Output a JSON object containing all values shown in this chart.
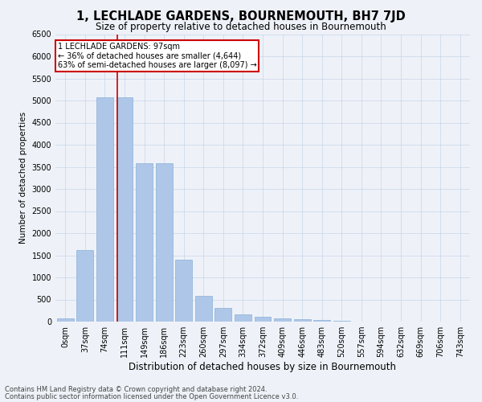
{
  "title": "1, LECHLADE GARDENS, BOURNEMOUTH, BH7 7JD",
  "subtitle": "Size of property relative to detached houses in Bournemouth",
  "xlabel": "Distribution of detached houses by size in Bournemouth",
  "ylabel": "Number of detached properties",
  "footer_line1": "Contains HM Land Registry data © Crown copyright and database right 2024.",
  "footer_line2": "Contains public sector information licensed under the Open Government Licence v3.0.",
  "bar_labels": [
    "0sqm",
    "37sqm",
    "74sqm",
    "111sqm",
    "149sqm",
    "186sqm",
    "223sqm",
    "260sqm",
    "297sqm",
    "334sqm",
    "372sqm",
    "409sqm",
    "446sqm",
    "483sqm",
    "520sqm",
    "557sqm",
    "594sqm",
    "632sqm",
    "669sqm",
    "706sqm",
    "743sqm"
  ],
  "bar_values": [
    75,
    1620,
    5080,
    5080,
    3580,
    3580,
    1400,
    590,
    310,
    155,
    110,
    75,
    60,
    30,
    15,
    8,
    5,
    3,
    2,
    2,
    2
  ],
  "bar_color": "#aec6e8",
  "bar_edge_color": "#8ab0d8",
  "grid_color": "#c8d4e8",
  "background_color": "#eef2f8",
  "vline_color": "#cc0000",
  "annotation_text": "1 LECHLADE GARDENS: 97sqm\n← 36% of detached houses are smaller (4,644)\n63% of semi-detached houses are larger (8,097) →",
  "annotation_box_color": "#cc0000",
  "ylim": [
    0,
    6500
  ],
  "yticks": [
    0,
    500,
    1000,
    1500,
    2000,
    2500,
    3000,
    3500,
    4000,
    4500,
    5000,
    5500,
    6000,
    6500
  ],
  "title_fontsize": 10.5,
  "subtitle_fontsize": 8.5,
  "xlabel_fontsize": 8.5,
  "ylabel_fontsize": 7.5,
  "tick_fontsize": 7.0,
  "footer_fontsize": 6.0,
  "annot_fontsize": 7.0
}
